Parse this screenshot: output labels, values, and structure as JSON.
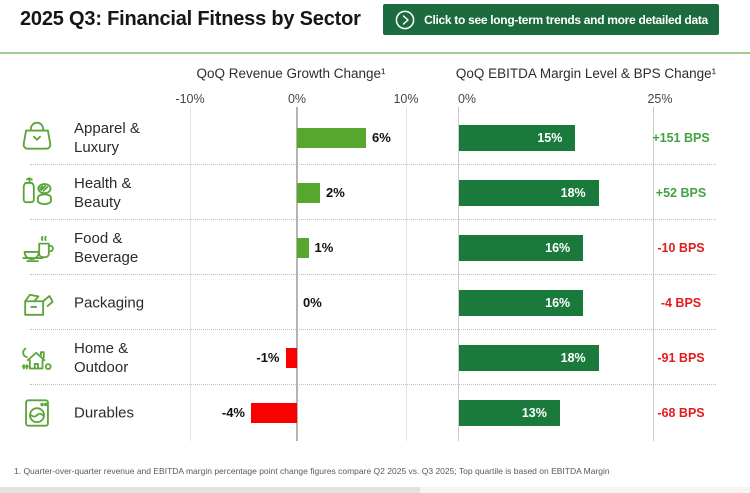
{
  "header": {
    "title": "2025 Q3: Financial Fitness by Sector",
    "cta_label": "Click to see long-term trends and more detailed data"
  },
  "axes": {
    "revenue_title": "QoQ Revenue Growth Change¹",
    "ebitda_title": "QoQ EBITDA Margin Level & BPS Change¹",
    "revenue_ticks": [
      "-10%",
      "0%",
      "10%"
    ],
    "ebitda_ticks": [
      "0%",
      "25%"
    ]
  },
  "rows": [
    {
      "sector": "Apparel & Luxury",
      "icon": "handbag-icon",
      "revenue_pct": 6,
      "revenue_label": "6%",
      "ebitda_pct": 15,
      "ebitda_label": "15%",
      "bps_label": "+151 BPS",
      "bps_sign": "positive"
    },
    {
      "sector": "Health & Beauty",
      "icon": "cosmetics-icon",
      "revenue_pct": 2,
      "revenue_label": "2%",
      "ebitda_pct": 18,
      "ebitda_label": "18%",
      "bps_label": "+52 BPS",
      "bps_sign": "positive"
    },
    {
      "sector": "Food & Beverage",
      "icon": "food-beverage-icon",
      "revenue_pct": 1,
      "revenue_label": "1%",
      "ebitda_pct": 16,
      "ebitda_label": "16%",
      "bps_label": "-10 BPS",
      "bps_sign": "negative"
    },
    {
      "sector": "Packaging",
      "icon": "open-box-icon",
      "revenue_pct": 0,
      "revenue_label": "0%",
      "ebitda_pct": 16,
      "ebitda_label": "16%",
      "bps_label": "-4 BPS",
      "bps_sign": "negative"
    },
    {
      "sector": "Home & Outdoor",
      "icon": "house-tree-icon",
      "revenue_pct": -1,
      "revenue_label": "-1%",
      "ebitda_pct": 18,
      "ebitda_label": "18%",
      "bps_label": "-91 BPS",
      "bps_sign": "negative"
    },
    {
      "sector": "Durables",
      "icon": "washing-machine-icon",
      "revenue_pct": -4,
      "revenue_label": "-4%",
      "ebitda_pct": 13,
      "ebitda_label": "13%",
      "bps_label": "-68 BPS",
      "bps_sign": "negative"
    }
  ],
  "footnote": "1. Quarter-over-quarter revenue and EBITDA margin percentage point change figures compare Q2 2025 vs. Q3 2025; Top quartile is based on EBITDA Margin",
  "colors": {
    "cta_background": "#1c6b3e",
    "divider_green": "#a3cc93",
    "positive_bar": "#57a62e",
    "negative_bar": "#fa0000",
    "ebitda_bar": "#197a3c",
    "bps_positive_text": "#41a341",
    "bps_negative_text": "#e31b1c",
    "icon_green": "#5ba53a"
  },
  "chart_data": {
    "type": "bar",
    "orientation": "horizontal",
    "title": "2025 Q3: Financial Fitness by Sector",
    "categories": [
      "Apparel & Luxury",
      "Health & Beauty",
      "Food & Beverage",
      "Packaging",
      "Home & Outdoor",
      "Durables"
    ],
    "series": [
      {
        "name": "QoQ Revenue Growth Change (%)",
        "values": [
          6,
          2,
          1,
          0,
          -1,
          -4
        ],
        "axis_range": [
          -10,
          10
        ],
        "tick_labels": [
          "-10%",
          "0%",
          "10%"
        ]
      },
      {
        "name": "QoQ EBITDA Margin Level (%)",
        "values": [
          15,
          18,
          16,
          16,
          18,
          13
        ],
        "axis_range": [
          0,
          25
        ],
        "tick_labels": [
          "0%",
          "25%"
        ]
      },
      {
        "name": "QoQ EBITDA BPS Change",
        "values": [
          151,
          52,
          -10,
          -4,
          -91,
          -68
        ]
      }
    ],
    "grid": "dotted-row-separators",
    "legend_position": "none",
    "footnote": "1. Quarter-over-quarter revenue and EBITDA margin percentage point change figures compare Q2 2025 vs. Q3 2025; Top quartile is based on EBITDA Margin"
  }
}
